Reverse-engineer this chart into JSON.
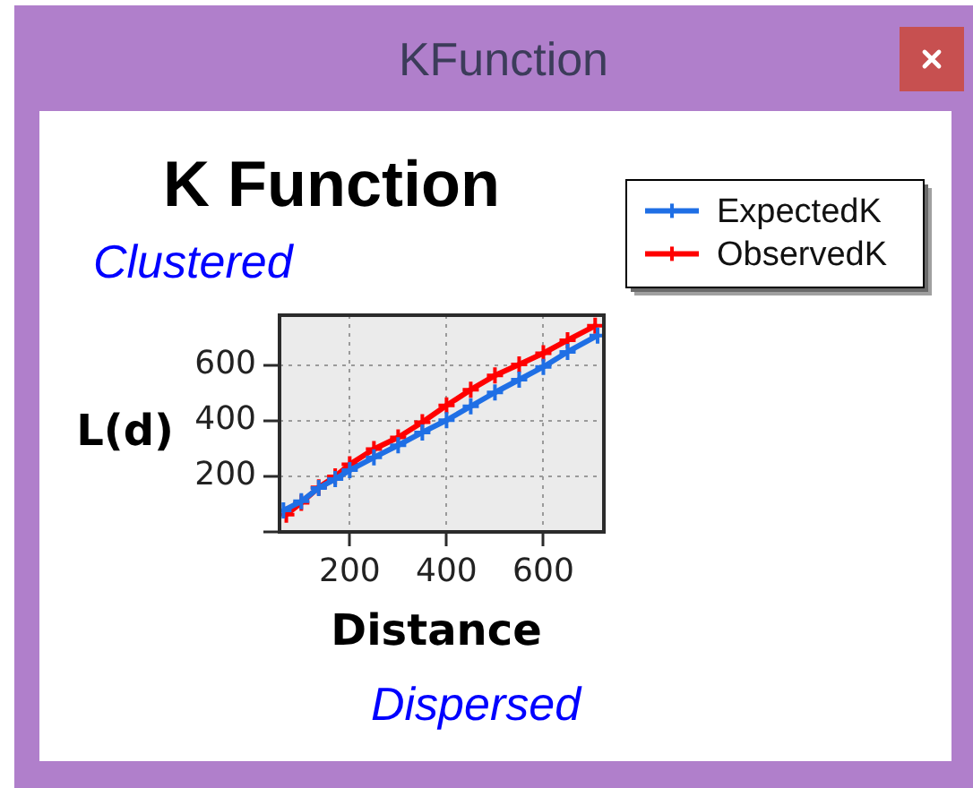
{
  "chart_data": {
    "type": "line",
    "title": "K Function",
    "xlabel": "Distance",
    "ylabel": "L(d)",
    "annotations": [
      "KFunction",
      "Clustered",
      "Dispersed"
    ],
    "series": [
      {
        "name": "ExpectedK",
        "color": "#1f6fe5",
        "x": [
          63,
          100,
          136,
          170,
          200,
          250,
          300,
          350,
          400,
          450,
          500,
          550,
          600,
          650,
          712
        ],
        "values": [
          77,
          110,
          158,
          190,
          222,
          268,
          312,
          358,
          402,
          452,
          502,
          548,
          594,
          648,
          707
        ]
      },
      {
        "name": "ObservedK",
        "color": "#ff0000",
        "x": [
          69,
          100,
          136,
          170,
          200,
          250,
          300,
          350,
          400,
          450,
          500,
          550,
          600,
          650,
          707
        ],
        "values": [
          62,
          105,
          160,
          200,
          243,
          298,
          340,
          395,
          455,
          512,
          563,
          603,
          643,
          690,
          742
        ]
      }
    ],
    "xlim": [
      55,
      725
    ],
    "ylim": [
      0,
      780
    ],
    "xticks": [
      200,
      400,
      600
    ],
    "yticks": [
      {
        "value": 0,
        "label": null
      },
      200,
      400,
      600
    ],
    "grid": true,
    "legend": "top right",
    "marker": "cross",
    "line_style": "solid"
  }
}
